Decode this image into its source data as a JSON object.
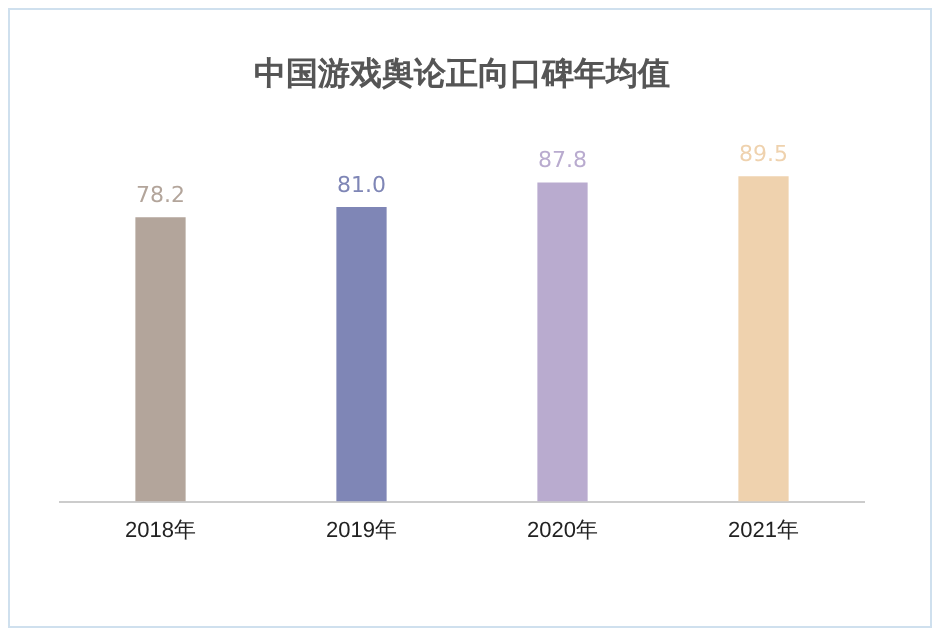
{
  "chart_data": {
    "type": "bar",
    "title": "中国游戏舆论正向口碑年均值",
    "categories": [
      "2018年",
      "2019年",
      "2020年",
      "2021年"
    ],
    "values": [
      78.2,
      81.0,
      87.8,
      89.5
    ],
    "colors": [
      "#b3a59b",
      "#7f86b6",
      "#b9abcf",
      "#efd2ae"
    ],
    "value_labels": [
      "78.2",
      "81.0",
      "87.8",
      "89.5"
    ],
    "grid": false,
    "legend": false
  }
}
